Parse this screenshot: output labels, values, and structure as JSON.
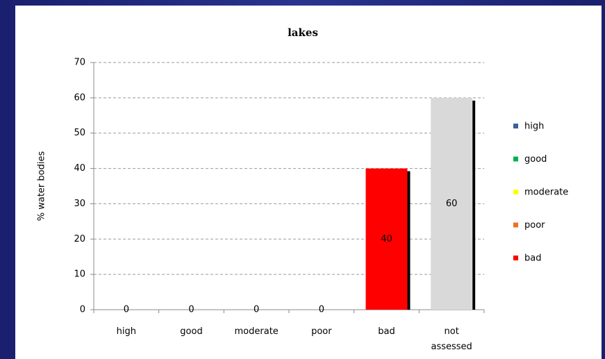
{
  "chart_data": {
    "type": "bar",
    "title": "lakes",
    "y_label": "% water bodies",
    "categories": [
      "high",
      "good",
      "moderate",
      "poor",
      "bad",
      "not assessed"
    ],
    "values": [
      0,
      0,
      0,
      0,
      40,
      60
    ],
    "colors": [
      "#3a5f9b",
      "#00b050",
      "#ffff00",
      "#f07020",
      "#ff0000",
      "#d9d9d9"
    ],
    "legend_count": 5,
    "ylim": [
      0,
      70
    ],
    "yticks": [
      0,
      10,
      20,
      30,
      40,
      50,
      60,
      70
    ],
    "grid": true,
    "legend": "right"
  }
}
